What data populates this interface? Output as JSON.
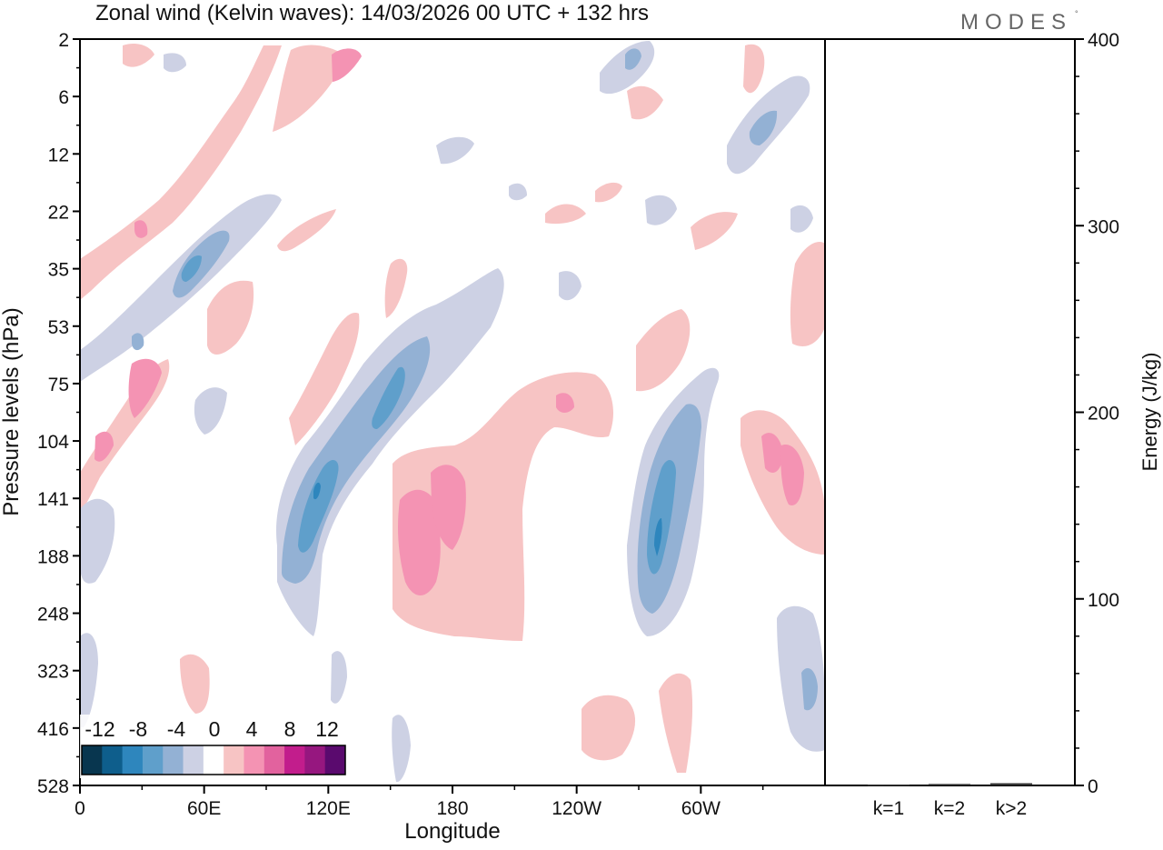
{
  "header": {
    "title": "Zonal wind (Kelvin waves):  14/03/2026  00 UTC  + 132 hrs",
    "brand": "MODES",
    "brand_mark": "°"
  },
  "chart_data": [
    {
      "type": "heatmap",
      "title": "Zonal wind (Kelvin waves):  14/03/2026  00 UTC  + 132 hrs",
      "xlabel": "Longitude",
      "ylabel": "Pressure levels (hPa)",
      "x_ticks": [
        "0",
        "60E",
        "120E",
        "180",
        "120W",
        "60W"
      ],
      "x_tick_values": [
        0,
        60,
        120,
        180,
        240,
        300
      ],
      "xlim": [
        0,
        360
      ],
      "y_ticks": [
        "2",
        "6",
        "12",
        "22",
        "35",
        "53",
        "75",
        "104",
        "141",
        "188",
        "248",
        "323",
        "416",
        "528"
      ],
      "y_scale": "model levels (pressure decreasing upward)",
      "colorbar": {
        "labels": [
          "-12",
          "-8",
          "-4",
          "0",
          "4",
          "8",
          "12"
        ],
        "levels": [
          -14,
          -12,
          -10,
          -8,
          -6,
          -4,
          -2,
          2,
          4,
          6,
          8,
          10,
          12,
          14
        ],
        "colors": [
          "#08364f",
          "#0e5e8c",
          "#2e86bd",
          "#5f9fcb",
          "#93b1d4",
          "#cdd1e4",
          "#ffffff",
          "#f7c4c4",
          "#f493b3",
          "#e2629e",
          "#c21d8c",
          "#96177f",
          "#5a0a6e"
        ]
      },
      "features": [
        {
          "sign": "negative",
          "lon": 120,
          "plev": "141",
          "peak": -12
        },
        {
          "sign": "negative",
          "lon": 275,
          "plev": "188",
          "peak": -12
        },
        {
          "sign": "positive",
          "lon": 165,
          "plev": "188",
          "peak": 6
        },
        {
          "sign": "positive",
          "lon": 340,
          "plev": "141",
          "peak": 8
        },
        {
          "sign": "negative",
          "lon": 350,
          "plev": "323",
          "peak": -6
        }
      ]
    },
    {
      "type": "bar",
      "categories": [
        "k=1",
        "k=2",
        "k>2"
      ],
      "values": [
        0.5,
        0.8,
        1.2
      ],
      "ylabel": "Energy (J/kg)",
      "ylim": [
        0,
        400
      ],
      "y_ticks": [
        "0",
        "100",
        "200",
        "300",
        "400"
      ]
    }
  ]
}
